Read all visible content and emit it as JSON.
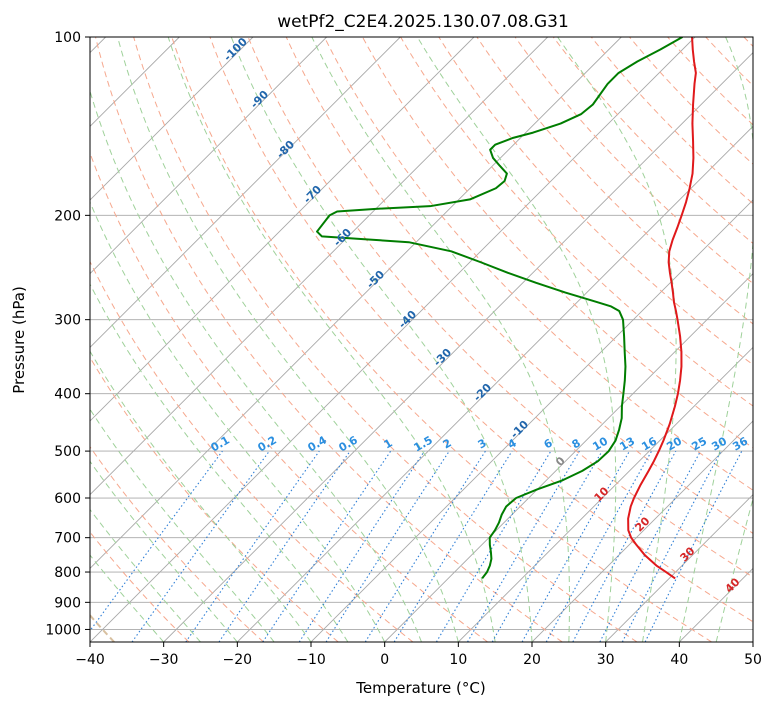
{
  "chart_data": {
    "type": "line",
    "subtype": "skew-t log-p",
    "title": "wetPf2_C2E4.2025.130.07.08.G31",
    "xlabel": "Temperature (°C)",
    "ylabel": "Pressure (hPa)",
    "xlim": [
      -40,
      50
    ],
    "ylim": [
      1050,
      100
    ],
    "y_scale": "log",
    "x_ticks": [
      -40,
      -30,
      -20,
      -10,
      0,
      10,
      20,
      30,
      40,
      50
    ],
    "y_ticks": [
      100,
      200,
      300,
      400,
      500,
      600,
      700,
      800,
      900,
      1000
    ],
    "grid": true,
    "series": [
      {
        "role": "temperature",
        "color": "#e0191b",
        "points": [
          [
            820,
            30.8
          ],
          [
            800,
            28.7
          ],
          [
            780,
            26.5
          ],
          [
            750,
            23.6
          ],
          [
            720,
            21.0
          ],
          [
            700,
            19.3
          ],
          [
            680,
            17.9
          ],
          [
            650,
            16.3
          ],
          [
            620,
            15.0
          ],
          [
            600,
            14.3
          ],
          [
            570,
            13.4
          ],
          [
            540,
            12.6
          ],
          [
            520,
            12.0
          ],
          [
            500,
            11.3
          ],
          [
            480,
            10.5
          ],
          [
            450,
            9.1
          ],
          [
            420,
            7.4
          ],
          [
            400,
            6.1
          ],
          [
            380,
            4.6
          ],
          [
            360,
            2.9
          ],
          [
            340,
            0.9
          ],
          [
            320,
            -1.4
          ],
          [
            300,
            -4.0
          ],
          [
            290,
            -5.4
          ],
          [
            280,
            -6.9
          ],
          [
            270,
            -8.3
          ],
          [
            260,
            -9.8
          ],
          [
            250,
            -11.4
          ],
          [
            240,
            -13.0
          ],
          [
            230,
            -14.4
          ],
          [
            220,
            -15.5
          ],
          [
            210,
            -16.5
          ],
          [
            200,
            -17.6
          ],
          [
            190,
            -18.8
          ],
          [
            180,
            -20.2
          ],
          [
            170,
            -21.8
          ],
          [
            160,
            -23.8
          ],
          [
            150,
            -26.1
          ],
          [
            140,
            -28.6
          ],
          [
            130,
            -31.1
          ],
          [
            120,
            -33.7
          ],
          [
            115,
            -35.0
          ],
          [
            110,
            -36.8
          ],
          [
            105,
            -38.6
          ],
          [
            100,
            -40.4
          ]
        ]
      },
      {
        "role": "dewpoint",
        "color": "#007d00",
        "points": [
          [
            820,
            4.6
          ],
          [
            800,
            4.4
          ],
          [
            780,
            3.9
          ],
          [
            760,
            3.2
          ],
          [
            740,
            2.2
          ],
          [
            720,
            1.1
          ],
          [
            700,
            0.1
          ],
          [
            680,
            -0.2
          ],
          [
            660,
            -0.7
          ],
          [
            640,
            -1.4
          ],
          [
            620,
            -1.9
          ],
          [
            600,
            -1.7
          ],
          [
            580,
            0.0
          ],
          [
            560,
            2.2
          ],
          [
            540,
            3.6
          ],
          [
            520,
            4.4
          ],
          [
            500,
            4.5
          ],
          [
            480,
            4.0
          ],
          [
            460,
            3.0
          ],
          [
            440,
            1.8
          ],
          [
            420,
            0.2
          ],
          [
            400,
            -1.3
          ],
          [
            380,
            -2.9
          ],
          [
            360,
            -4.7
          ],
          [
            340,
            -6.8
          ],
          [
            320,
            -9.0
          ],
          [
            300,
            -11.4
          ],
          [
            290,
            -13.1
          ],
          [
            285,
            -14.8
          ],
          [
            280,
            -17.4
          ],
          [
            270,
            -22.9
          ],
          [
            260,
            -28.2
          ],
          [
            250,
            -33.4
          ],
          [
            240,
            -38.5
          ],
          [
            230,
            -44.0
          ],
          [
            222,
            -51.0
          ],
          [
            219,
            -58.5
          ],
          [
            217,
            -63.6
          ],
          [
            213,
            -64.9
          ],
          [
            200,
            -65.4
          ],
          [
            197,
            -64.9
          ],
          [
            195,
            -60.0
          ],
          [
            193,
            -53.0
          ],
          [
            188,
            -48.5
          ],
          [
            180,
            -46.5
          ],
          [
            175,
            -46.3
          ],
          [
            170,
            -47.0
          ],
          [
            165,
            -49.0
          ],
          [
            160,
            -51.0
          ],
          [
            155,
            -52.5
          ],
          [
            152,
            -52.5
          ],
          [
            148,
            -51.0
          ],
          [
            145,
            -49.0
          ],
          [
            140,
            -46.5
          ],
          [
            135,
            -45.0
          ],
          [
            130,
            -44.7
          ],
          [
            120,
            -45.5
          ],
          [
            115,
            -45.5
          ],
          [
            110,
            -44.5
          ],
          [
            105,
            -43.0
          ],
          [
            100,
            -41.7
          ]
        ]
      }
    ],
    "mixing_ratio_labels": [
      "0.1",
      "0.2",
      "0.4",
      "0.6",
      "1",
      "1.5",
      "2",
      "3",
      "4",
      "6",
      "8",
      "10",
      "13",
      "16",
      "20",
      "25",
      "30",
      "36"
    ],
    "mixing_ratio_values": [
      0.1,
      0.2,
      0.4,
      0.6,
      1,
      1.5,
      2,
      3,
      4,
      6,
      8,
      10,
      13,
      16,
      20,
      25,
      30,
      36
    ],
    "dry_adiabat_labels": [
      "-100",
      "-90",
      "-80",
      "-70",
      "-60",
      "-50",
      "-40",
      "-30",
      "-20",
      "-10"
    ],
    "dry_adiabat_values": [
      -100,
      -90,
      -80,
      -70,
      -60,
      -50,
      -40,
      -30,
      -20,
      -10
    ],
    "moist_adiabat_labels": [
      "0",
      "10",
      "20",
      "30",
      "40"
    ],
    "moist_adiabat_values": [
      0,
      10,
      20,
      30,
      40
    ],
    "colors": {
      "isotherm": "#a8a8a8",
      "dry_adiabat": "#f6a88e",
      "moist_adiabat": "#9fd19a",
      "mixing_ratio": "#2f7fd6",
      "dry_label": "#2166ac",
      "moist_label": "#d62728",
      "moist_zero_label": "#888888",
      "mix_label": "#2b8fe0",
      "lcl_curve": "#d8c0a0"
    }
  }
}
